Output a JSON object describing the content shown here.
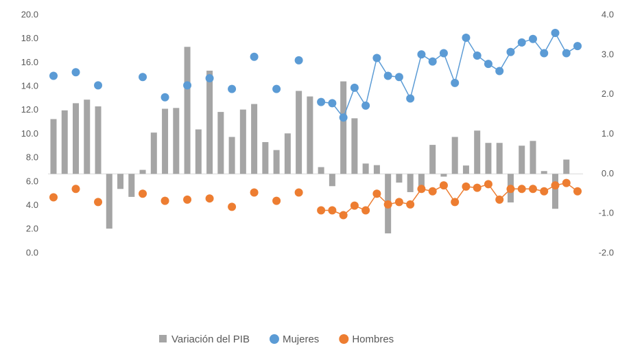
{
  "chart_data": {
    "type": "bar-line",
    "categories": [
      null,
      null,
      null,
      null,
      null,
      null,
      null,
      null,
      null,
      null,
      null,
      null,
      null,
      null,
      null,
      null,
      null,
      null,
      null,
      null,
      null,
      null,
      null,
      null,
      null,
      null,
      null,
      null,
      null,
      null,
      null,
      null,
      null,
      null,
      null,
      null,
      null,
      null,
      null,
      null,
      null,
      null,
      null,
      null,
      null,
      null,
      null,
      null
    ],
    "series": [
      {
        "name": "Variación del PIB",
        "type": "bar",
        "axis": "y2",
        "color": "#a5a5a5",
        "values": [
          1.38,
          1.6,
          1.78,
          1.87,
          1.7,
          -1.38,
          -0.38,
          -0.58,
          0.1,
          1.04,
          1.64,
          1.66,
          3.2,
          1.12,
          2.6,
          1.56,
          0.93,
          1.62,
          1.76,
          0.8,
          0.6,
          1.02,
          2.09,
          1.95,
          0.17,
          -0.31,
          2.33,
          1.4,
          0.26,
          0.22,
          -1.5,
          -0.22,
          -0.46,
          -0.46,
          0.73,
          -0.07,
          0.93,
          0.21,
          1.09,
          0.78,
          0.78,
          -0.72,
          0.71,
          0.83,
          0.07,
          -0.88,
          0.36,
          null
        ]
      },
      {
        "name": "Mujeres",
        "type": "line",
        "axis": "y",
        "color": "#5b9bd5",
        "values": [
          14.9,
          null,
          15.2,
          null,
          14.1,
          null,
          null,
          null,
          14.8,
          null,
          13.1,
          null,
          14.1,
          null,
          14.7,
          null,
          13.8,
          null,
          16.5,
          null,
          13.8,
          null,
          16.2,
          null,
          12.7,
          12.6,
          11.4,
          13.9,
          12.4,
          16.4,
          14.9,
          14.8,
          13.0,
          16.7,
          16.1,
          16.8,
          14.3,
          18.1,
          16.6,
          15.9,
          15.3,
          16.9,
          17.7,
          18.0,
          16.8,
          18.5,
          16.8,
          17.4
        ]
      },
      {
        "name": "Hombres",
        "type": "line",
        "axis": "y",
        "color": "#ed7d31",
        "values": [
          4.7,
          null,
          5.4,
          null,
          4.3,
          null,
          null,
          null,
          5.0,
          null,
          4.4,
          null,
          4.5,
          null,
          4.6,
          null,
          3.9,
          null,
          5.1,
          null,
          4.4,
          null,
          5.1,
          null,
          3.6,
          3.6,
          3.2,
          4.0,
          3.6,
          5.0,
          4.1,
          4.3,
          4.1,
          5.4,
          5.2,
          5.7,
          4.3,
          5.6,
          5.5,
          5.8,
          4.5,
          5.4,
          5.4,
          5.4,
          5.2,
          5.7,
          5.9,
          5.2
        ]
      }
    ],
    "ylim": [
      0,
      20
    ],
    "yticks": [
      {
        "value": 0,
        "label": "0.0"
      },
      {
        "value": 2,
        "label": "2.0"
      },
      {
        "value": 4,
        "label": "4.0"
      },
      {
        "value": 6,
        "label": "6.0"
      },
      {
        "value": 8,
        "label": "8.0"
      },
      {
        "value": 10,
        "label": "10.0"
      },
      {
        "value": 12,
        "label": "12.0"
      },
      {
        "value": 14,
        "label": "14.0"
      },
      {
        "value": 16,
        "label": "16.0"
      },
      {
        "value": 18,
        "label": "18.0"
      },
      {
        "value": 20,
        "label": "20.0"
      }
    ],
    "y2lim": [
      -2,
      4
    ],
    "y2ticks": [
      {
        "value": -2,
        "label": "-2.0"
      },
      {
        "value": -1,
        "label": "-1.0"
      },
      {
        "value": 0,
        "label": "0.0"
      },
      {
        "value": 1,
        "label": "1.0"
      },
      {
        "value": 2,
        "label": "2.0"
      },
      {
        "value": 3,
        "label": "3.0"
      },
      {
        "value": 4,
        "label": "4.0"
      }
    ],
    "legend": "bottom"
  }
}
